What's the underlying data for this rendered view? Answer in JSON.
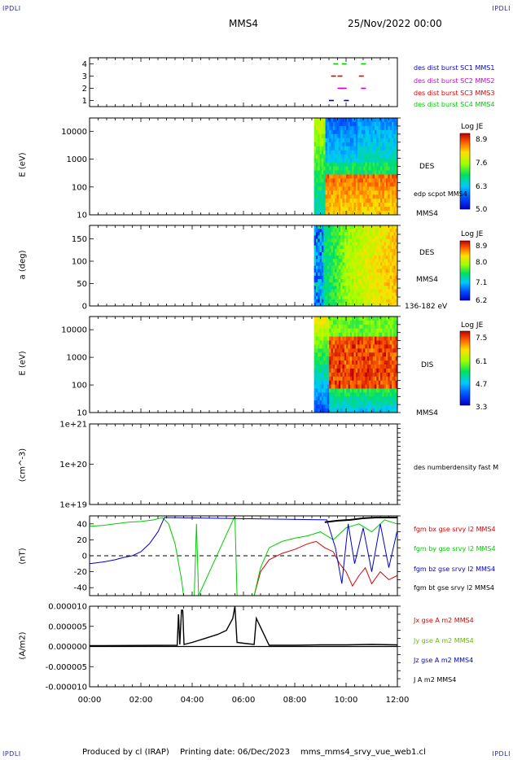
{
  "header": {
    "corner_tl": "IPDLI",
    "corner_tr": "IPDLI",
    "corner_bl": "IPDLI",
    "corner_br": "IPDLI",
    "spacecraft": "MMS4",
    "date": "25/Nov/2022 00:00"
  },
  "footer": {
    "produced": "Produced by cl (IRAP)",
    "printing": "Printing date: 06/Dec/2023",
    "file": "mms_mms4_srvy_vue_web1.cl"
  },
  "colors": {
    "mms1": "#0000cc",
    "mms2": "#cc00cc",
    "mms3": "#dd0000",
    "mms4": "#00cc00",
    "bx": "#dd0000",
    "by": "#00cc00",
    "bz": "#0000cc",
    "bt": "#000000"
  },
  "chart_data": [
    {
      "type": "scatter",
      "panel": "burst",
      "ylim": [
        0.5,
        4.5
      ],
      "yticks": [
        "1",
        "2",
        "3",
        "4"
      ],
      "series": [
        {
          "name": "des dist burst SC1 MMS1",
          "x": [
            "09:20",
            "09:55"
          ],
          "y": [
            1,
            1
          ]
        },
        {
          "name": "des dist burst SC2 MMS2",
          "x": [
            "09:40",
            "09:50",
            "10:35"
          ],
          "y": [
            2,
            2,
            2
          ]
        },
        {
          "name": "des dist burst SC3 MMS3",
          "x": [
            "09:25",
            "09:40",
            "10:30"
          ],
          "y": [
            3,
            3,
            3
          ]
        },
        {
          "name": "des dist burst SC4 MMS4",
          "x": [
            "09:30",
            "09:50",
            "10:35"
          ],
          "y": [
            4,
            4,
            4
          ]
        }
      ]
    },
    {
      "type": "heatmap",
      "panel": "des_energy",
      "ylabel": "E (eV)",
      "ylog": true,
      "ylim": [
        10,
        30000
      ],
      "yticks": [
        "10",
        "100",
        "1000",
        "10000"
      ],
      "side_label": "DES",
      "overlay_label": "edp scpot MMS4",
      "sc_label": "MMS4",
      "colorbar": {
        "title": "Log JE",
        "ticks": [
          "8.9",
          "7.6",
          "6.3",
          "5.0"
        ]
      },
      "data_start": "08:45"
    },
    {
      "type": "heatmap",
      "panel": "des_pitch",
      "ylabel": "a (deg)",
      "ylim": [
        0,
        180
      ],
      "yticks": [
        "0",
        "50",
        "100",
        "150"
      ],
      "side_label": "DES",
      "sc_label": "MMS4",
      "energy_label": "136-182 eV",
      "colorbar": {
        "title": "Log JE",
        "ticks": [
          "8.9",
          "8.0",
          "7.1",
          "6.2"
        ]
      },
      "data_start": "08:45"
    },
    {
      "type": "heatmap",
      "panel": "dis_energy",
      "ylabel": "E (eV)",
      "ylog": true,
      "ylim": [
        10,
        30000
      ],
      "yticks": [
        "10",
        "100",
        "1000",
        "10000"
      ],
      "side_label": "DIS",
      "sc_label": "MMS4",
      "colorbar": {
        "title": "Log JE",
        "ticks": [
          "7.5",
          "6.1",
          "4.7",
          "3.3"
        ]
      },
      "data_start": "08:45"
    },
    {
      "type": "line",
      "panel": "density",
      "ylabel": "(cm^-3)",
      "ylog": true,
      "ylim": [
        1e+19,
        1e+21
      ],
      "yticks": [
        "1e+19",
        "1e+20",
        "1e+21"
      ],
      "series": [
        {
          "name": "des numberdensity fast M",
          "x": [],
          "y": []
        }
      ]
    },
    {
      "type": "line",
      "panel": "fgm",
      "ylabel": "(nT)",
      "ylim": [
        -50,
        50
      ],
      "yticks": [
        "-40",
        "-20",
        "0",
        "20",
        "40"
      ],
      "zero_line": true,
      "series": [
        {
          "name": "fgm bx gse srvy l2 MMS4",
          "x": [
            "06:25",
            "06:40",
            "07:00",
            "07:30",
            "08:00",
            "08:30",
            "08:50",
            "09:10",
            "09:30",
            "09:45",
            "10:00",
            "10:15",
            "10:30",
            "10:45",
            "11:00",
            "11:20",
            "11:40",
            "11:59"
          ],
          "y": [
            -50,
            -20,
            -5,
            3,
            8,
            15,
            18,
            10,
            5,
            -10,
            -20,
            -38,
            -25,
            -15,
            -35,
            -20,
            -30,
            -25
          ]
        },
        {
          "name": "fgm by gse srvy l2 MMS4",
          "x": [
            "00:00",
            "00:30",
            "01:00",
            "01:30",
            "02:00",
            "02:30",
            "02:50",
            "03:05",
            "03:20",
            "03:35",
            "03:40",
            "04:05",
            "04:10",
            "04:15",
            "05:40",
            "05:45",
            "05:50",
            "06:25",
            "06:40",
            "07:00",
            "07:30",
            "08:00",
            "08:30",
            "09:00",
            "09:30",
            "10:00",
            "10:30",
            "11:00",
            "11:30",
            "11:59"
          ],
          "y": [
            37,
            38,
            40,
            42,
            43,
            45,
            48,
            40,
            15,
            -30,
            -50,
            -50,
            40,
            -50,
            50,
            -50,
            -50,
            -50,
            -15,
            10,
            18,
            22,
            25,
            30,
            20,
            35,
            40,
            30,
            45,
            40
          ]
        },
        {
          "name": "fgm bz gse srvy l2 MMS4",
          "x": [
            "00:00",
            "00:30",
            "01:00",
            "01:20",
            "01:40",
            "02:00",
            "02:20",
            "02:40",
            "02:55",
            "09:15",
            "09:35",
            "09:50",
            "10:05",
            "10:20",
            "10:40",
            "11:00",
            "11:20",
            "11:40",
            "11:59"
          ],
          "y": [
            -10,
            -8,
            -5,
            -2,
            0,
            5,
            15,
            30,
            48,
            45,
            10,
            -35,
            40,
            -10,
            35,
            -20,
            40,
            -15,
            30
          ]
        },
        {
          "name": "fgm bt gse srvy l2 MMS4",
          "x": [
            "09:10",
            "09:40",
            "10:10",
            "10:40",
            "11:10",
            "11:40",
            "11:59"
          ],
          "y": [
            42,
            44,
            45,
            47,
            48,
            48,
            48
          ]
        }
      ]
    },
    {
      "type": "line",
      "panel": "current",
      "ylabel": "(A/m2)",
      "ylim": [
        -1e-05,
        1e-05
      ],
      "yticks": [
        "-0.000010",
        "-0.000005",
        "0.000000",
        "0.000005",
        "0.000010"
      ],
      "series": [
        {
          "name": "Jx gse A m2 MMS4",
          "x": [],
          "y": []
        },
        {
          "name": "Jy gse A m2 MMS4",
          "x": [],
          "y": []
        },
        {
          "name": "Jz gse A m2 MMS4",
          "x": [],
          "y": []
        },
        {
          "name": "J A m2 MMS4",
          "x": [
            "00:00",
            "03:25",
            "03:28",
            "03:31",
            "03:35",
            "03:38",
            "03:41",
            "04:00",
            "04:30",
            "05:00",
            "05:20",
            "05:35",
            "05:40",
            "05:45",
            "06:00",
            "06:25",
            "06:30",
            "07:00",
            "08:00",
            "09:00",
            "10:00",
            "11:00",
            "11:59"
          ],
          "y": [
            2e-07,
            3e-07,
            8e-06,
            5e-07,
            9e-06,
            9e-06,
            5e-07,
            1e-06,
            2e-06,
            3e-06,
            4e-06,
            7e-06,
            1e-05,
            1e-06,
            8e-07,
            5e-07,
            7e-06,
            3e-07,
            3e-07,
            4e-07,
            4e-07,
            5e-07,
            4e-07
          ]
        }
      ]
    }
  ],
  "time_axis": {
    "start": "00:00",
    "end": "12:00",
    "ticks": [
      "00:00",
      "02:00",
      "04:00",
      "06:00",
      "08:00",
      "10:00",
      "12:00"
    ]
  }
}
